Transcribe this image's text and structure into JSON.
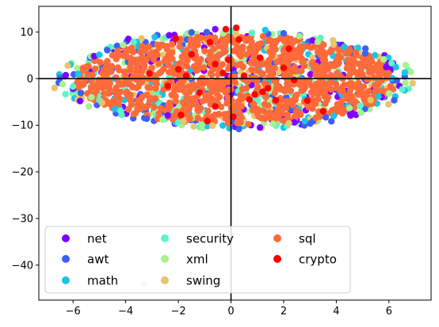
{
  "chart_data": {
    "type": "scatter",
    "title": "",
    "xlabel": "",
    "ylabel": "",
    "xlim": [
      -7.3,
      7.6
    ],
    "ylim": [
      -47.5,
      15.5
    ],
    "xticks": [
      -6,
      -4,
      -2,
      0,
      2,
      4,
      6
    ],
    "yticks": [
      10,
      0,
      -10,
      -20,
      -30,
      -40
    ],
    "grid": false,
    "reference_lines": {
      "x": 0,
      "y": 0
    },
    "legend": {
      "placement": "lower-left",
      "columns": 3
    },
    "cluster": {
      "center_x": 0.2,
      "half_width_x": 6.8,
      "center_y": -0.3,
      "half_height_y": 10.6
    },
    "series": [
      {
        "name": "net",
        "color": "#8000ff",
        "points": [
          [
            -6.3,
            0.5
          ],
          [
            -6.0,
            -2.2
          ],
          [
            -5.2,
            4.8
          ],
          [
            -3.9,
            8.5
          ],
          [
            -2.4,
            -7.9
          ],
          [
            -0.6,
            10.6
          ],
          [
            1.1,
            -10.5
          ],
          [
            3.1,
            8.2
          ],
          [
            4.6,
            -7.4
          ],
          [
            5.9,
            2.5
          ],
          [
            6.4,
            -1.6
          ],
          [
            2.4,
            -9.4
          ]
        ]
      },
      {
        "name": "awt",
        "color": "#3e5ff5",
        "points": [
          [
            -6.5,
            0.1
          ],
          [
            -5.7,
            -3.1
          ],
          [
            -4.7,
            6.1
          ],
          [
            -3.2,
            -8.6
          ],
          [
            -1.5,
            9.9
          ],
          [
            0.3,
            -10.8
          ],
          [
            2.0,
            9.7
          ],
          [
            3.6,
            -8.3
          ],
          [
            5.1,
            5.4
          ],
          [
            6.3,
            -0.4
          ],
          [
            6.6,
            0.5
          ],
          [
            -2.8,
            9.3
          ]
        ]
      },
      {
        "name": "math",
        "color": "#1bc3e8",
        "points": [
          [
            -6.1,
            3.0
          ],
          [
            -5.8,
            1.0
          ],
          [
            -4.4,
            -6.5
          ],
          [
            -2.9,
            8.9
          ],
          [
            -0.9,
            -10.2
          ],
          [
            1.3,
            10.4
          ],
          [
            2.8,
            -9.1
          ],
          [
            4.3,
            6.8
          ],
          [
            5.6,
            -3.8
          ],
          [
            6.6,
            1.3
          ],
          [
            -5.0,
            5.1
          ],
          [
            3.9,
            -8.0
          ]
        ]
      },
      {
        "name": "security",
        "color": "#5cf5c7",
        "points": [
          [
            -6.0,
            -1.7
          ],
          [
            -5.0,
            -4.6
          ],
          [
            -3.7,
            7.9
          ],
          [
            -2.0,
            -9.4
          ],
          [
            0.0,
            10.2
          ],
          [
            1.7,
            -10.1
          ],
          [
            3.4,
            8.7
          ],
          [
            4.9,
            -5.9
          ],
          [
            6.1,
            3.3
          ],
          [
            6.5,
            -2.3
          ],
          [
            -4.2,
            -6.9
          ],
          [
            0.8,
            9.8
          ]
        ]
      },
      {
        "name": "xml",
        "color": "#a6f28c",
        "points": [
          [
            -6.4,
            -1.2
          ],
          [
            -5.3,
            -4.0
          ],
          [
            -4.1,
            7.2
          ],
          [
            -2.6,
            -8.8
          ],
          [
            -0.3,
            9.7
          ],
          [
            1.6,
            -9.7
          ],
          [
            3.3,
            7.9
          ],
          [
            4.5,
            -6.3
          ],
          [
            5.8,
            4.1
          ],
          [
            6.0,
            -3.2
          ],
          [
            -1.1,
            -9.9
          ],
          [
            2.6,
            9.1
          ]
        ]
      },
      {
        "name": "swing",
        "color": "#e8c46a",
        "points": [
          [
            -6.7,
            -2.0
          ],
          [
            -6.2,
            2.8
          ],
          [
            -4.9,
            -5.2
          ],
          [
            -3.4,
            8.6
          ],
          [
            -1.8,
            -9.2
          ],
          [
            0.2,
            9.4
          ],
          [
            2.2,
            -9.6
          ],
          [
            3.9,
            7.3
          ],
          [
            5.3,
            -4.6
          ],
          [
            6.9,
            -1.0
          ],
          [
            -3.3,
            -44.2
          ],
          [
            -0.7,
            -10.1
          ]
        ]
      },
      {
        "name": "sql",
        "color": "#ff6a3a",
        "points": [
          [
            -5.6,
            2.0
          ],
          [
            -5.1,
            -2.6
          ],
          [
            -4.3,
            4.9
          ],
          [
            -3.5,
            -5.5
          ],
          [
            -2.7,
            7.1
          ],
          [
            -1.7,
            -7.2
          ],
          [
            -0.8,
            8.8
          ],
          [
            0.4,
            -8.3
          ],
          [
            1.4,
            8.1
          ],
          [
            2.5,
            -7.0
          ],
          [
            3.5,
            5.8
          ],
          [
            4.4,
            -4.3
          ],
          [
            5.2,
            2.6
          ],
          [
            5.6,
            -1.2
          ],
          [
            -3.0,
            0.9
          ],
          [
            -1.4,
            2.6
          ],
          [
            0.0,
            -2.3
          ],
          [
            1.2,
            3.1
          ],
          [
            2.7,
            -1.8
          ],
          [
            3.8,
            0.7
          ],
          [
            -4.6,
            -1.0
          ],
          [
            -2.1,
            -3.8
          ],
          [
            0.6,
            5.2
          ],
          [
            2.1,
            1.6
          ],
          [
            -0.5,
            -5.4
          ],
          [
            3.1,
            3.5
          ],
          [
            4.7,
            1.4
          ],
          [
            -3.8,
            3.3
          ],
          [
            1.8,
            -4.6
          ],
          [
            -1.0,
            5.9
          ]
        ]
      },
      {
        "name": "crypto",
        "color": "#ff0000",
        "points": [
          [
            -3.1,
            1.1
          ],
          [
            -2.1,
            8.6
          ],
          [
            -2.0,
            2.0
          ],
          [
            -1.7,
            0.6
          ],
          [
            -1.5,
            5.2
          ],
          [
            -1.2,
            -3.0
          ],
          [
            -0.8,
            7.8
          ],
          [
            -0.6,
            3.1
          ],
          [
            -0.3,
            1.2
          ],
          [
            -0.2,
            10.6
          ],
          [
            -0.1,
            4.0
          ],
          [
            0.2,
            10.9
          ],
          [
            0.3,
            8.4
          ],
          [
            0.5,
            0.6
          ],
          [
            0.7,
            -4.5
          ],
          [
            0.9,
            -3.4
          ],
          [
            1.2,
            -2.8
          ],
          [
            1.4,
            -2.1
          ],
          [
            1.7,
            -4.6
          ],
          [
            2.0,
            2.3
          ],
          [
            2.2,
            6.4
          ],
          [
            2.4,
            -0.3
          ],
          [
            2.9,
            -4.7
          ],
          [
            3.5,
            -7.0
          ],
          [
            -1.9,
            -7.8
          ],
          [
            -0.9,
            -9.1
          ],
          [
            0.1,
            -8.2
          ],
          [
            1.1,
            4.5
          ],
          [
            -2.4,
            -1.6
          ],
          [
            -0.6,
            -6.0
          ]
        ]
      }
    ]
  }
}
